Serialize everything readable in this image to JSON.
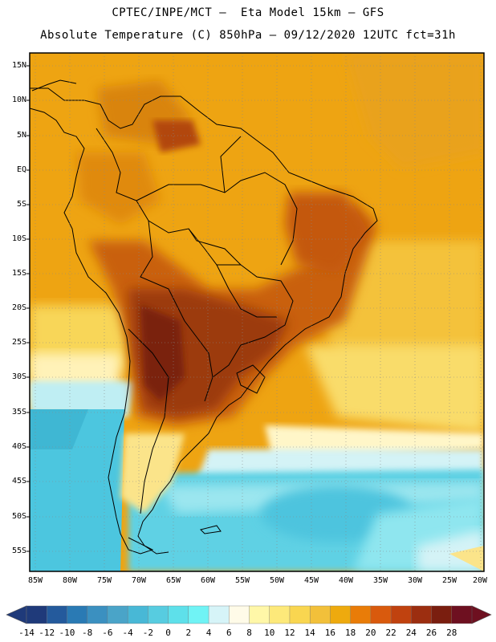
{
  "header": {
    "line1": "CPTEC/INPE/MCT –  Eta Model 15km – GFS",
    "line2": "Absolute Temperature (C) 850hPa – 09/12/2020 12UTC fct=31h"
  },
  "axes": {
    "lat_labels": [
      "15N",
      "10N",
      "5N",
      "EQ",
      "5S",
      "10S",
      "15S",
      "20S",
      "25S",
      "30S",
      "35S",
      "40S",
      "45S",
      "50S",
      "55S"
    ],
    "lon_labels": [
      "85W",
      "80W",
      "75W",
      "70W",
      "65W",
      "60W",
      "55W",
      "50W",
      "45W",
      "40W",
      "35W",
      "30W",
      "25W",
      "20W"
    ]
  },
  "colorbar": {
    "labels": [
      "-14",
      "-12",
      "-10",
      "-8",
      "-6",
      "-4",
      "-2",
      "0",
      "2",
      "4",
      "6",
      "8",
      "10",
      "12",
      "14",
      "16",
      "18",
      "20",
      "22",
      "24",
      "26",
      "28"
    ],
    "colors": [
      "#1f3a7a",
      "#245a9c",
      "#2a7ab4",
      "#3b90c0",
      "#4aa4c8",
      "#48b8d6",
      "#57cce0",
      "#5ee0ea",
      "#70f3f5",
      "#d6f4f8",
      "#fffbe8",
      "#fff7a8",
      "#fde97a",
      "#f9d650",
      "#f2c03a",
      "#eeaa0e",
      "#e97c08",
      "#d95a0d",
      "#c0420f",
      "#9c2e10",
      "#7a1e0f",
      "#6e1020"
    ]
  },
  "map_colors": {
    "ocean_cold": "#4cc6df",
    "ocean_cool": "#8fe6ef",
    "ocean_pale": "#d4f3f6",
    "ocean_cream": "#fff6c8",
    "ocean_yellow": "#fbe48a",
    "warm_orange": "#ecab1c",
    "land_orange": "#eea412",
    "land_dark": "#c9610e",
    "land_darker": "#9c3a0d",
    "hot_core": "#7a2010"
  }
}
